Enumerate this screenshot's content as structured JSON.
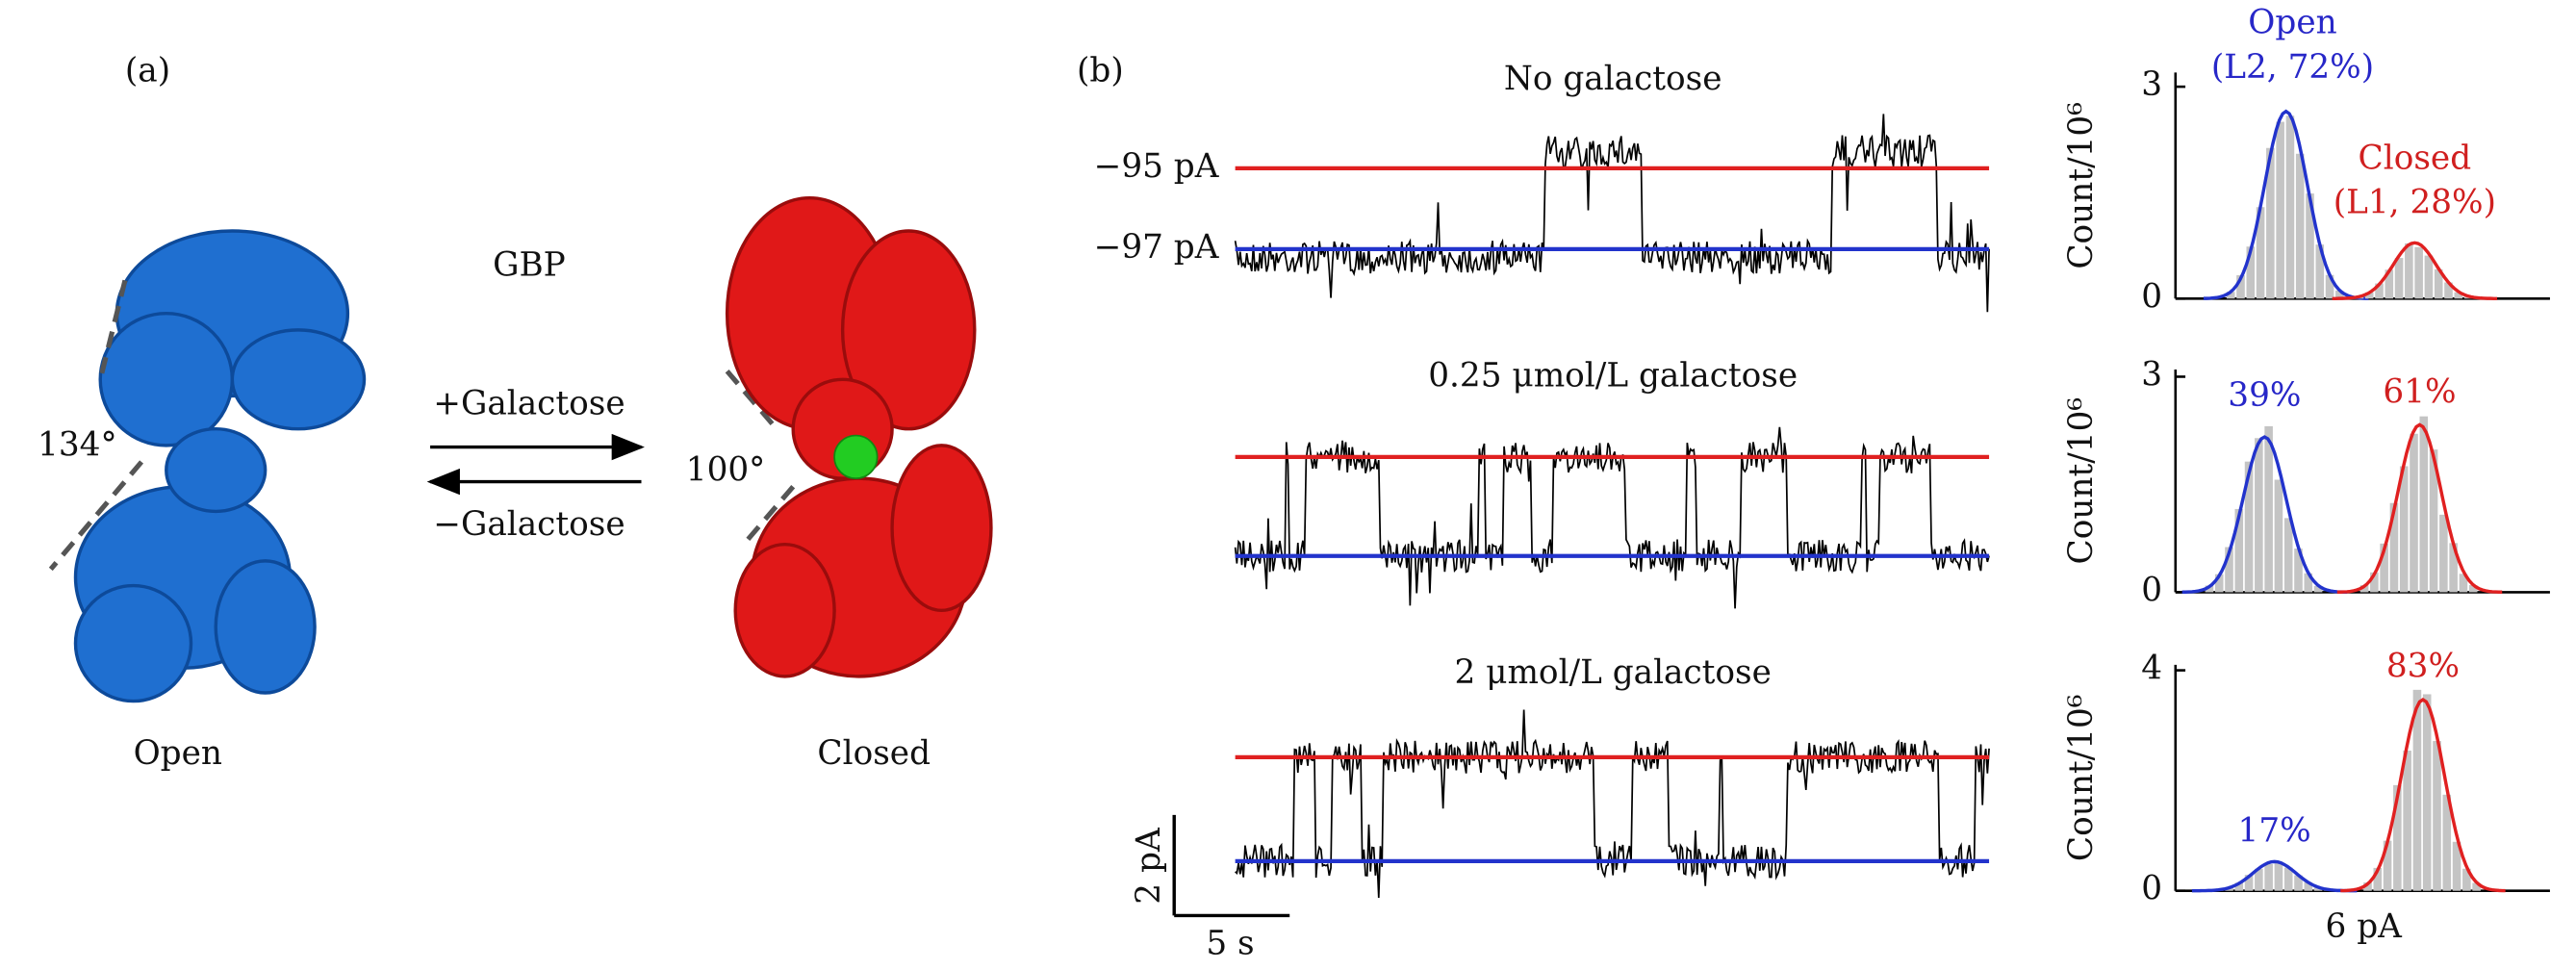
{
  "panel_a": {
    "label": "(a)",
    "protein": "GBP",
    "forward": "+Galactose",
    "reverse": "−Galactose",
    "open": {
      "label": "Open",
      "angle": "134°"
    },
    "closed": {
      "label": "Closed",
      "angle": "100°"
    }
  },
  "panel_b": {
    "label": "(b)",
    "level_labels": [
      "−95 pA",
      "−97 pA"
    ],
    "scale_bar": {
      "y": "2 pA",
      "x": "5 s"
    },
    "histogram_x_label": "6 pA",
    "rows": [
      {
        "title": "No galactose",
        "y_label": "Count/10⁶",
        "ylim": [
          0,
          3.2
        ],
        "yticks": [
          0,
          3
        ],
        "open": {
          "peak": 2.65,
          "labels": [
            "Open",
            "(L2, 72%)"
          ]
        },
        "closed": {
          "peak": 0.79,
          "labels": [
            "Closed",
            "(L1, 28%)"
          ]
        }
      },
      {
        "title": "0.25 μmol/L galactose",
        "y_label": "Count/10⁶",
        "ylim": [
          0,
          3.1
        ],
        "yticks": [
          0,
          3
        ],
        "open": {
          "peak": 2.16,
          "labels": [
            "39%"
          ]
        },
        "closed": {
          "peak": 2.33,
          "labels": [
            "61%"
          ]
        }
      },
      {
        "title": "2 μmol/L galactose",
        "y_label": "Count/10⁶",
        "ylim": [
          0,
          4.1
        ],
        "yticks": [
          0,
          4
        ],
        "open": {
          "peak": 0.53,
          "labels": [
            "17%"
          ]
        },
        "closed": {
          "peak": 3.47,
          "labels": [
            "83%"
          ]
        }
      }
    ]
  }
}
